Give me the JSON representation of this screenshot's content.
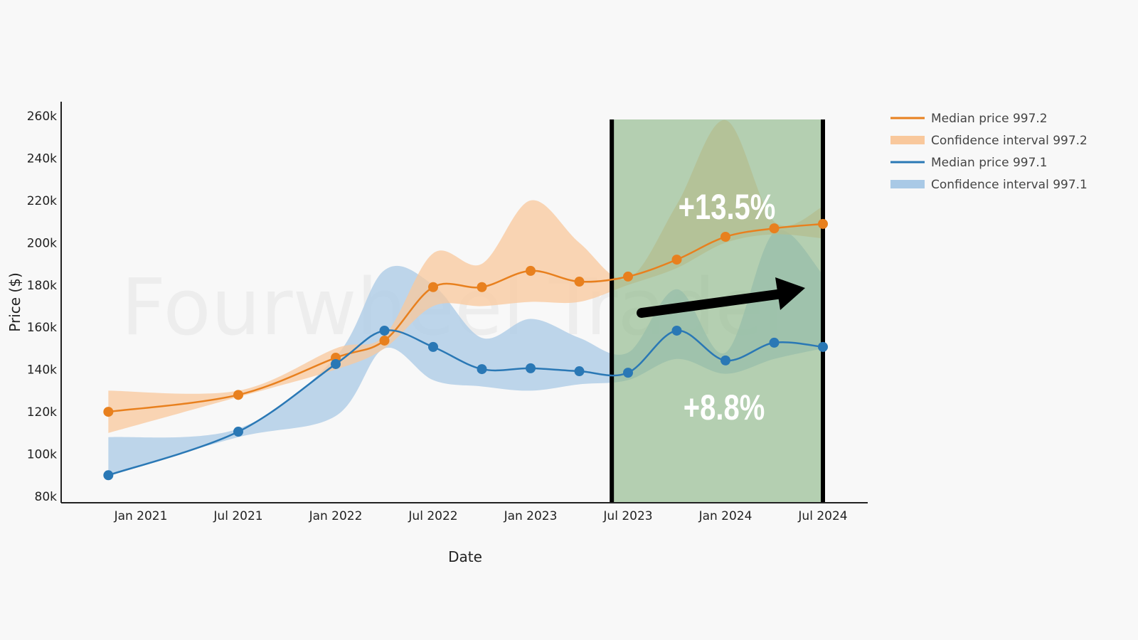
{
  "chart_data": {
    "type": "line",
    "title": "",
    "xlabel": "Date",
    "ylabel": "Price ($)",
    "ylim": [
      80,
      260
    ],
    "yticks": [
      80,
      100,
      120,
      140,
      160,
      180,
      200,
      220,
      240,
      260
    ],
    "ytick_labels": [
      "80k",
      "100k",
      "120k",
      "140k",
      "160k",
      "180k",
      "200k",
      "220k",
      "240k",
      "260k"
    ],
    "xticks": [
      "2021-01",
      "2021-07",
      "2022-01",
      "2022-07",
      "2023-01",
      "2023-07",
      "2024-01",
      "2024-07"
    ],
    "xtick_labels": [
      "Jan 2021",
      "Jul 2021",
      "Jan 2022",
      "Jul 2022",
      "Jan 2023",
      "Jul 2023",
      "Jan 2024",
      "Jul 2024"
    ],
    "x": [
      "2020-11",
      "2021-07",
      "2022-01",
      "2022-04",
      "2022-07",
      "2022-10",
      "2023-01",
      "2023-04",
      "2023-07",
      "2023-10",
      "2024-01",
      "2024-04",
      "2024-07"
    ],
    "series": [
      {
        "name": "Median price 997.2",
        "color": "#e8801e",
        "values": [
          120,
          128,
          145.6,
          153.7,
          179,
          179,
          186.7,
          181.6,
          184,
          192,
          202.8,
          206.8,
          208.9
        ],
        "ci_name": "Confidence interval 997.2",
        "ci_color": "#f9c89c",
        "ci_upper": [
          130,
          130,
          150,
          156,
          195,
          190,
          220,
          200,
          183,
          218,
          258,
          210,
          217
        ],
        "ci_lower": [
          110,
          127,
          140,
          150,
          170,
          170,
          172,
          172,
          180,
          188,
          200,
          204,
          202
        ]
      },
      {
        "name": "Median price 997.1",
        "color": "#2a78b5",
        "values": [
          90,
          110.6,
          142.6,
          158.4,
          150.7,
          140.2,
          140.6,
          139.2,
          138.5,
          158.4,
          144.3,
          152.7,
          150.7
        ],
        "ci_name": "Confidence interval 997.1",
        "ci_color": "#a9c9e6",
        "ci_upper": [
          108,
          112,
          146,
          187,
          180,
          155,
          164,
          155,
          148,
          178,
          148,
          205,
          185
        ],
        "ci_lower": [
          90,
          108,
          118,
          150,
          135,
          132,
          130,
          133,
          135,
          145,
          138,
          145,
          150
        ]
      }
    ],
    "legend_position": "top-right",
    "highlight": {
      "from": "2023-06",
      "to": "2024-07",
      "color": "#8fb98a"
    },
    "annotations": [
      "+13.5%",
      "+8.8%"
    ],
    "grid": false
  },
  "watermark": "Fourwheel Trader"
}
